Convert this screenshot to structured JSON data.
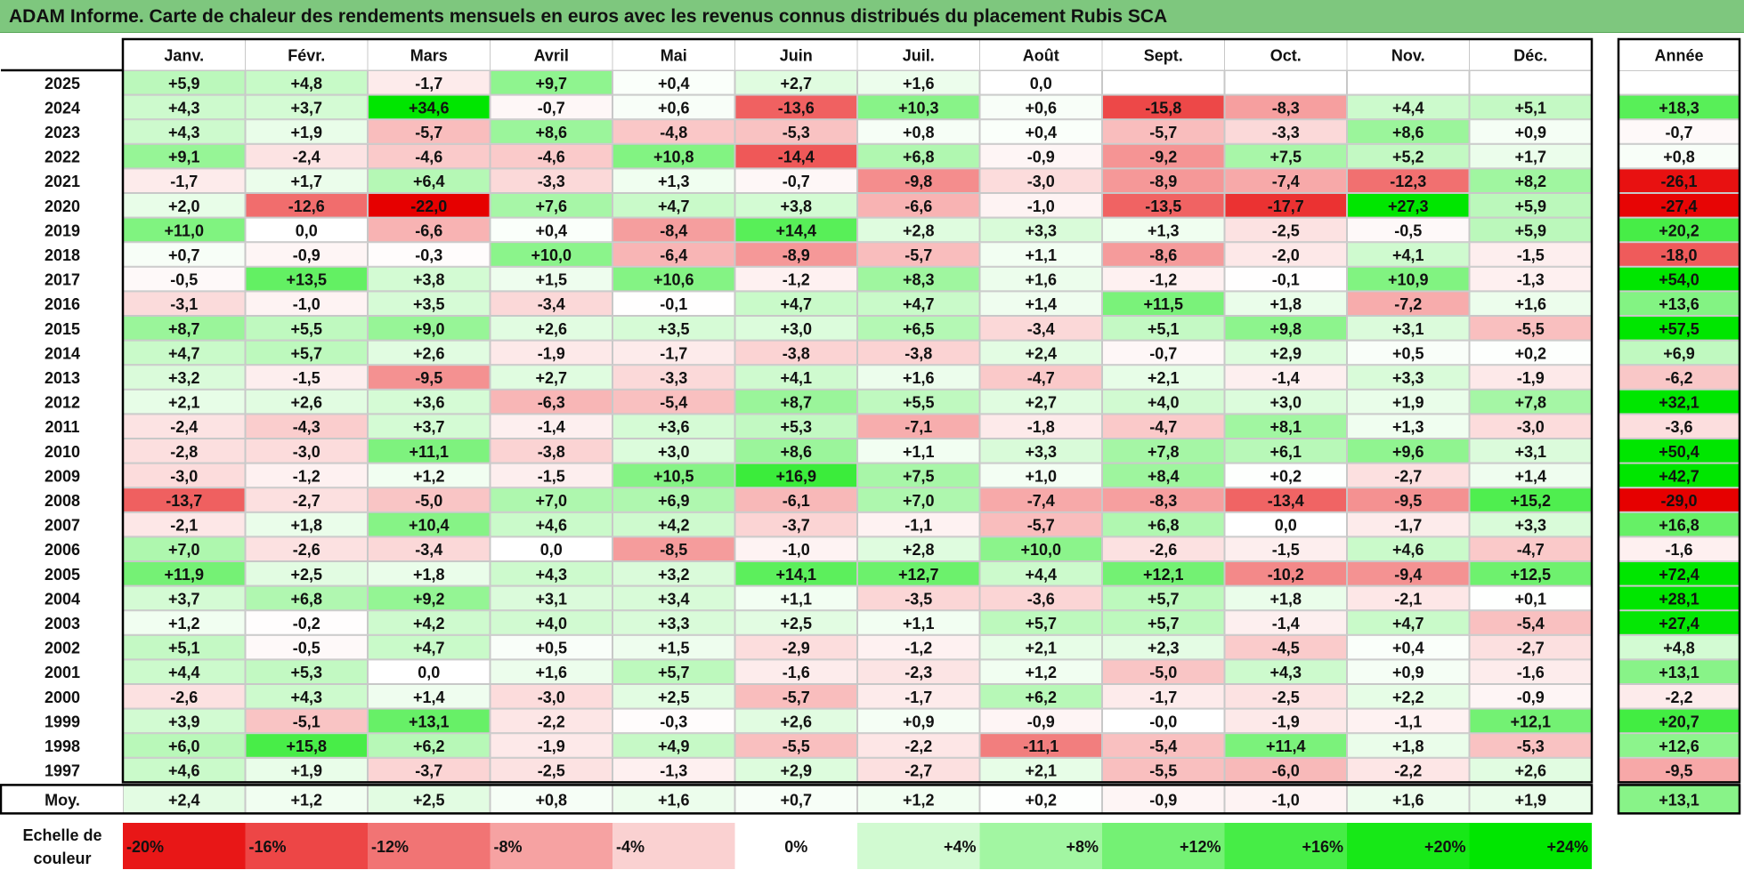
{
  "title": "ADAM Informe. Carte de chaleur des rendements mensuels en euros avec les revenus connus distribués du placement Rubis SCA",
  "colors": {
    "title_bg": "#7ec77e",
    "negative_max": "#e60000",
    "positive_max": "#00e600",
    "neutral": "#ffffff",
    "grid": "#c8c8c8",
    "frame": "#000000"
  },
  "chart_data": {
    "type": "heatmap",
    "months": [
      "Janv.",
      "Févr.",
      "Mars",
      "Avril",
      "Mai",
      "Juin",
      "Juil.",
      "Août",
      "Sept.",
      "Oct.",
      "Nov.",
      "Déc."
    ],
    "year_column_label": "Année",
    "rows": [
      {
        "year": "2025",
        "values": [
          "+5,9",
          "+4,8",
          "-1,7",
          "+9,7",
          "+0,4",
          "+2,7",
          "+1,6",
          "0,0",
          "",
          "",
          "",
          ""
        ],
        "annual": ""
      },
      {
        "year": "2024",
        "values": [
          "+4,3",
          "+3,7",
          "+34,6",
          "-0,7",
          "+0,6",
          "-13,6",
          "+10,3",
          "+0,6",
          "-15,8",
          "-8,3",
          "+4,4",
          "+5,1"
        ],
        "annual": "+18,3"
      },
      {
        "year": "2023",
        "values": [
          "+4,3",
          "+1,9",
          "-5,7",
          "+8,6",
          "-4,8",
          "-5,3",
          "+0,8",
          "+0,4",
          "-5,7",
          "-3,3",
          "+8,6",
          "+0,9"
        ],
        "annual": "-0,7"
      },
      {
        "year": "2022",
        "values": [
          "+9,1",
          "-2,4",
          "-4,6",
          "-4,6",
          "+10,8",
          "-14,4",
          "+6,8",
          "-0,9",
          "-9,2",
          "+7,5",
          "+5,2",
          "+1,7"
        ],
        "annual": "+0,8"
      },
      {
        "year": "2021",
        "values": [
          "-1,7",
          "+1,7",
          "+6,4",
          "-3,3",
          "+1,3",
          "-0,7",
          "-9,8",
          "-3,0",
          "-8,9",
          "-7,4",
          "-12,3",
          "+8,2"
        ],
        "annual": "-26,1"
      },
      {
        "year": "2020",
        "values": [
          "+2,0",
          "-12,6",
          "-22,0",
          "+7,6",
          "+4,7",
          "+3,8",
          "-6,6",
          "-1,0",
          "-13,5",
          "-17,7",
          "+27,3",
          "+5,9"
        ],
        "annual": "-27,4"
      },
      {
        "year": "2019",
        "values": [
          "+11,0",
          "0,0",
          "-6,6",
          "+0,4",
          "-8,4",
          "+14,4",
          "+2,8",
          "+3,3",
          "+1,3",
          "-2,5",
          "-0,5",
          "+5,9"
        ],
        "annual": "+20,2"
      },
      {
        "year": "2018",
        "values": [
          "+0,7",
          "-0,9",
          "-0,3",
          "+10,0",
          "-6,4",
          "-8,9",
          "-5,7",
          "+1,1",
          "-8,6",
          "-2,0",
          "+4,1",
          "-1,5"
        ],
        "annual": "-18,0"
      },
      {
        "year": "2017",
        "values": [
          "-0,5",
          "+13,5",
          "+3,8",
          "+1,5",
          "+10,6",
          "-1,2",
          "+8,3",
          "+1,6",
          "-1,2",
          "-0,1",
          "+10,9",
          "-1,3"
        ],
        "annual": "+54,0"
      },
      {
        "year": "2016",
        "values": [
          "-3,1",
          "-1,0",
          "+3,5",
          "-3,4",
          "-0,1",
          "+4,7",
          "+4,7",
          "+1,4",
          "+11,5",
          "+1,8",
          "-7,2",
          "+1,6"
        ],
        "annual": "+13,6"
      },
      {
        "year": "2015",
        "values": [
          "+8,7",
          "+5,5",
          "+9,0",
          "+2,6",
          "+3,5",
          "+3,0",
          "+6,5",
          "-3,4",
          "+5,1",
          "+9,8",
          "+3,1",
          "-5,5"
        ],
        "annual": "+57,5"
      },
      {
        "year": "2014",
        "values": [
          "+4,7",
          "+5,7",
          "+2,6",
          "-1,9",
          "-1,7",
          "-3,8",
          "-3,8",
          "+2,4",
          "-0,7",
          "+2,9",
          "+0,5",
          "+0,2"
        ],
        "annual": "+6,9"
      },
      {
        "year": "2013",
        "values": [
          "+3,2",
          "-1,5",
          "-9,5",
          "+2,7",
          "-3,3",
          "+4,1",
          "+1,6",
          "-4,7",
          "+2,1",
          "-1,4",
          "+3,3",
          "-1,9"
        ],
        "annual": "-6,2"
      },
      {
        "year": "2012",
        "values": [
          "+2,1",
          "+2,6",
          "+3,6",
          "-6,3",
          "-5,4",
          "+8,7",
          "+5,5",
          "+2,7",
          "+4,0",
          "+3,0",
          "+1,9",
          "+7,8"
        ],
        "annual": "+32,1"
      },
      {
        "year": "2011",
        "values": [
          "-2,4",
          "-4,3",
          "+3,7",
          "-1,4",
          "+3,6",
          "+5,3",
          "-7,1",
          "-1,8",
          "-4,7",
          "+8,1",
          "+1,3",
          "-3,0"
        ],
        "annual": "-3,6"
      },
      {
        "year": "2010",
        "values": [
          "-2,8",
          "-3,0",
          "+11,1",
          "-3,8",
          "+3,0",
          "+8,6",
          "+1,1",
          "+3,3",
          "+7,8",
          "+6,1",
          "+9,6",
          "+3,1"
        ],
        "annual": "+50,4"
      },
      {
        "year": "2009",
        "values": [
          "-3,0",
          "-1,2",
          "+1,2",
          "-1,5",
          "+10,5",
          "+16,9",
          "+7,5",
          "+1,0",
          "+8,4",
          "+0,2",
          "-2,7",
          "+1,4"
        ],
        "annual": "+42,7"
      },
      {
        "year": "2008",
        "values": [
          "-13,7",
          "-2,7",
          "-5,0",
          "+7,0",
          "+6,9",
          "-6,1",
          "+7,0",
          "-7,4",
          "-8,3",
          "-13,4",
          "-9,5",
          "+15,2"
        ],
        "annual": "-29,0"
      },
      {
        "year": "2007",
        "values": [
          "-2,1",
          "+1,8",
          "+10,4",
          "+4,6",
          "+4,2",
          "-3,7",
          "-1,1",
          "-5,7",
          "+6,8",
          "0,0",
          "-1,7",
          "+3,3"
        ],
        "annual": "+16,8"
      },
      {
        "year": "2006",
        "values": [
          "+7,0",
          "-2,6",
          "-3,4",
          "0,0",
          "-8,5",
          "-1,0",
          "+2,8",
          "+10,0",
          "-2,6",
          "-1,5",
          "+4,6",
          "-4,7"
        ],
        "annual": "-1,6"
      },
      {
        "year": "2005",
        "values": [
          "+11,9",
          "+2,5",
          "+1,8",
          "+4,3",
          "+3,2",
          "+14,1",
          "+12,7",
          "+4,4",
          "+12,1",
          "-10,2",
          "-9,4",
          "+12,5"
        ],
        "annual": "+72,4"
      },
      {
        "year": "2004",
        "values": [
          "+3,7",
          "+6,8",
          "+9,2",
          "+3,1",
          "+3,4",
          "+1,1",
          "-3,5",
          "-3,6",
          "+5,7",
          "+1,8",
          "-2,1",
          "+0,1"
        ],
        "annual": "+28,1"
      },
      {
        "year": "2003",
        "values": [
          "+1,2",
          "-0,2",
          "+4,2",
          "+4,0",
          "+3,3",
          "+2,5",
          "+1,1",
          "+5,7",
          "+5,7",
          "-1,4",
          "+4,7",
          "-5,4"
        ],
        "annual": "+27,4"
      },
      {
        "year": "2002",
        "values": [
          "+5,1",
          "-0,5",
          "+4,7",
          "+0,5",
          "+1,5",
          "-2,9",
          "-1,2",
          "+2,1",
          "+2,3",
          "-4,5",
          "+0,4",
          "-2,7"
        ],
        "annual": "+4,8"
      },
      {
        "year": "2001",
        "values": [
          "+4,4",
          "+5,3",
          "0,0",
          "+1,6",
          "+5,7",
          "-1,6",
          "-2,3",
          "+1,2",
          "-5,0",
          "+4,3",
          "+0,9",
          "-1,6"
        ],
        "annual": "+13,1"
      },
      {
        "year": "2000",
        "values": [
          "-2,6",
          "+4,3",
          "+1,4",
          "-3,0",
          "+2,5",
          "-5,7",
          "-1,7",
          "+6,2",
          "-1,7",
          "-2,5",
          "+2,2",
          "-0,9"
        ],
        "annual": "-2,2"
      },
      {
        "year": "1999",
        "values": [
          "+3,9",
          "-5,1",
          "+13,1",
          "-2,2",
          "-0,3",
          "+2,6",
          "+0,9",
          "-0,9",
          "-0,0",
          "-1,9",
          "-1,1",
          "+12,1"
        ],
        "annual": "+20,7"
      },
      {
        "year": "1998",
        "values": [
          "+6,0",
          "+15,8",
          "+6,2",
          "-1,9",
          "+4,9",
          "-5,5",
          "-2,2",
          "-11,1",
          "-5,4",
          "+11,4",
          "+1,8",
          "-5,3"
        ],
        "annual": "+12,6"
      },
      {
        "year": "1997",
        "values": [
          "+4,6",
          "+1,9",
          "-3,7",
          "-2,5",
          "-1,3",
          "+2,9",
          "-2,7",
          "+2,1",
          "-5,5",
          "-6,0",
          "-2,2",
          "+2,6"
        ],
        "annual": "-9,5"
      }
    ],
    "average": {
      "label": "Moy.",
      "values": [
        "+2,4",
        "+1,2",
        "+2,5",
        "+0,8",
        "+1,6",
        "+0,7",
        "+1,2",
        "+0,2",
        "-0,9",
        "-1,0",
        "+1,6",
        "+1,9"
      ],
      "annual": "+13,1"
    },
    "scale": {
      "label_line1": "Echelle de",
      "label_line2": "couleur",
      "steps": [
        "-20%",
        "-16%",
        "-12%",
        "-8%",
        "-4%",
        "0%",
        "+4%",
        "+8%",
        "+12%",
        "+16%",
        "+20%",
        "+24%"
      ]
    }
  }
}
